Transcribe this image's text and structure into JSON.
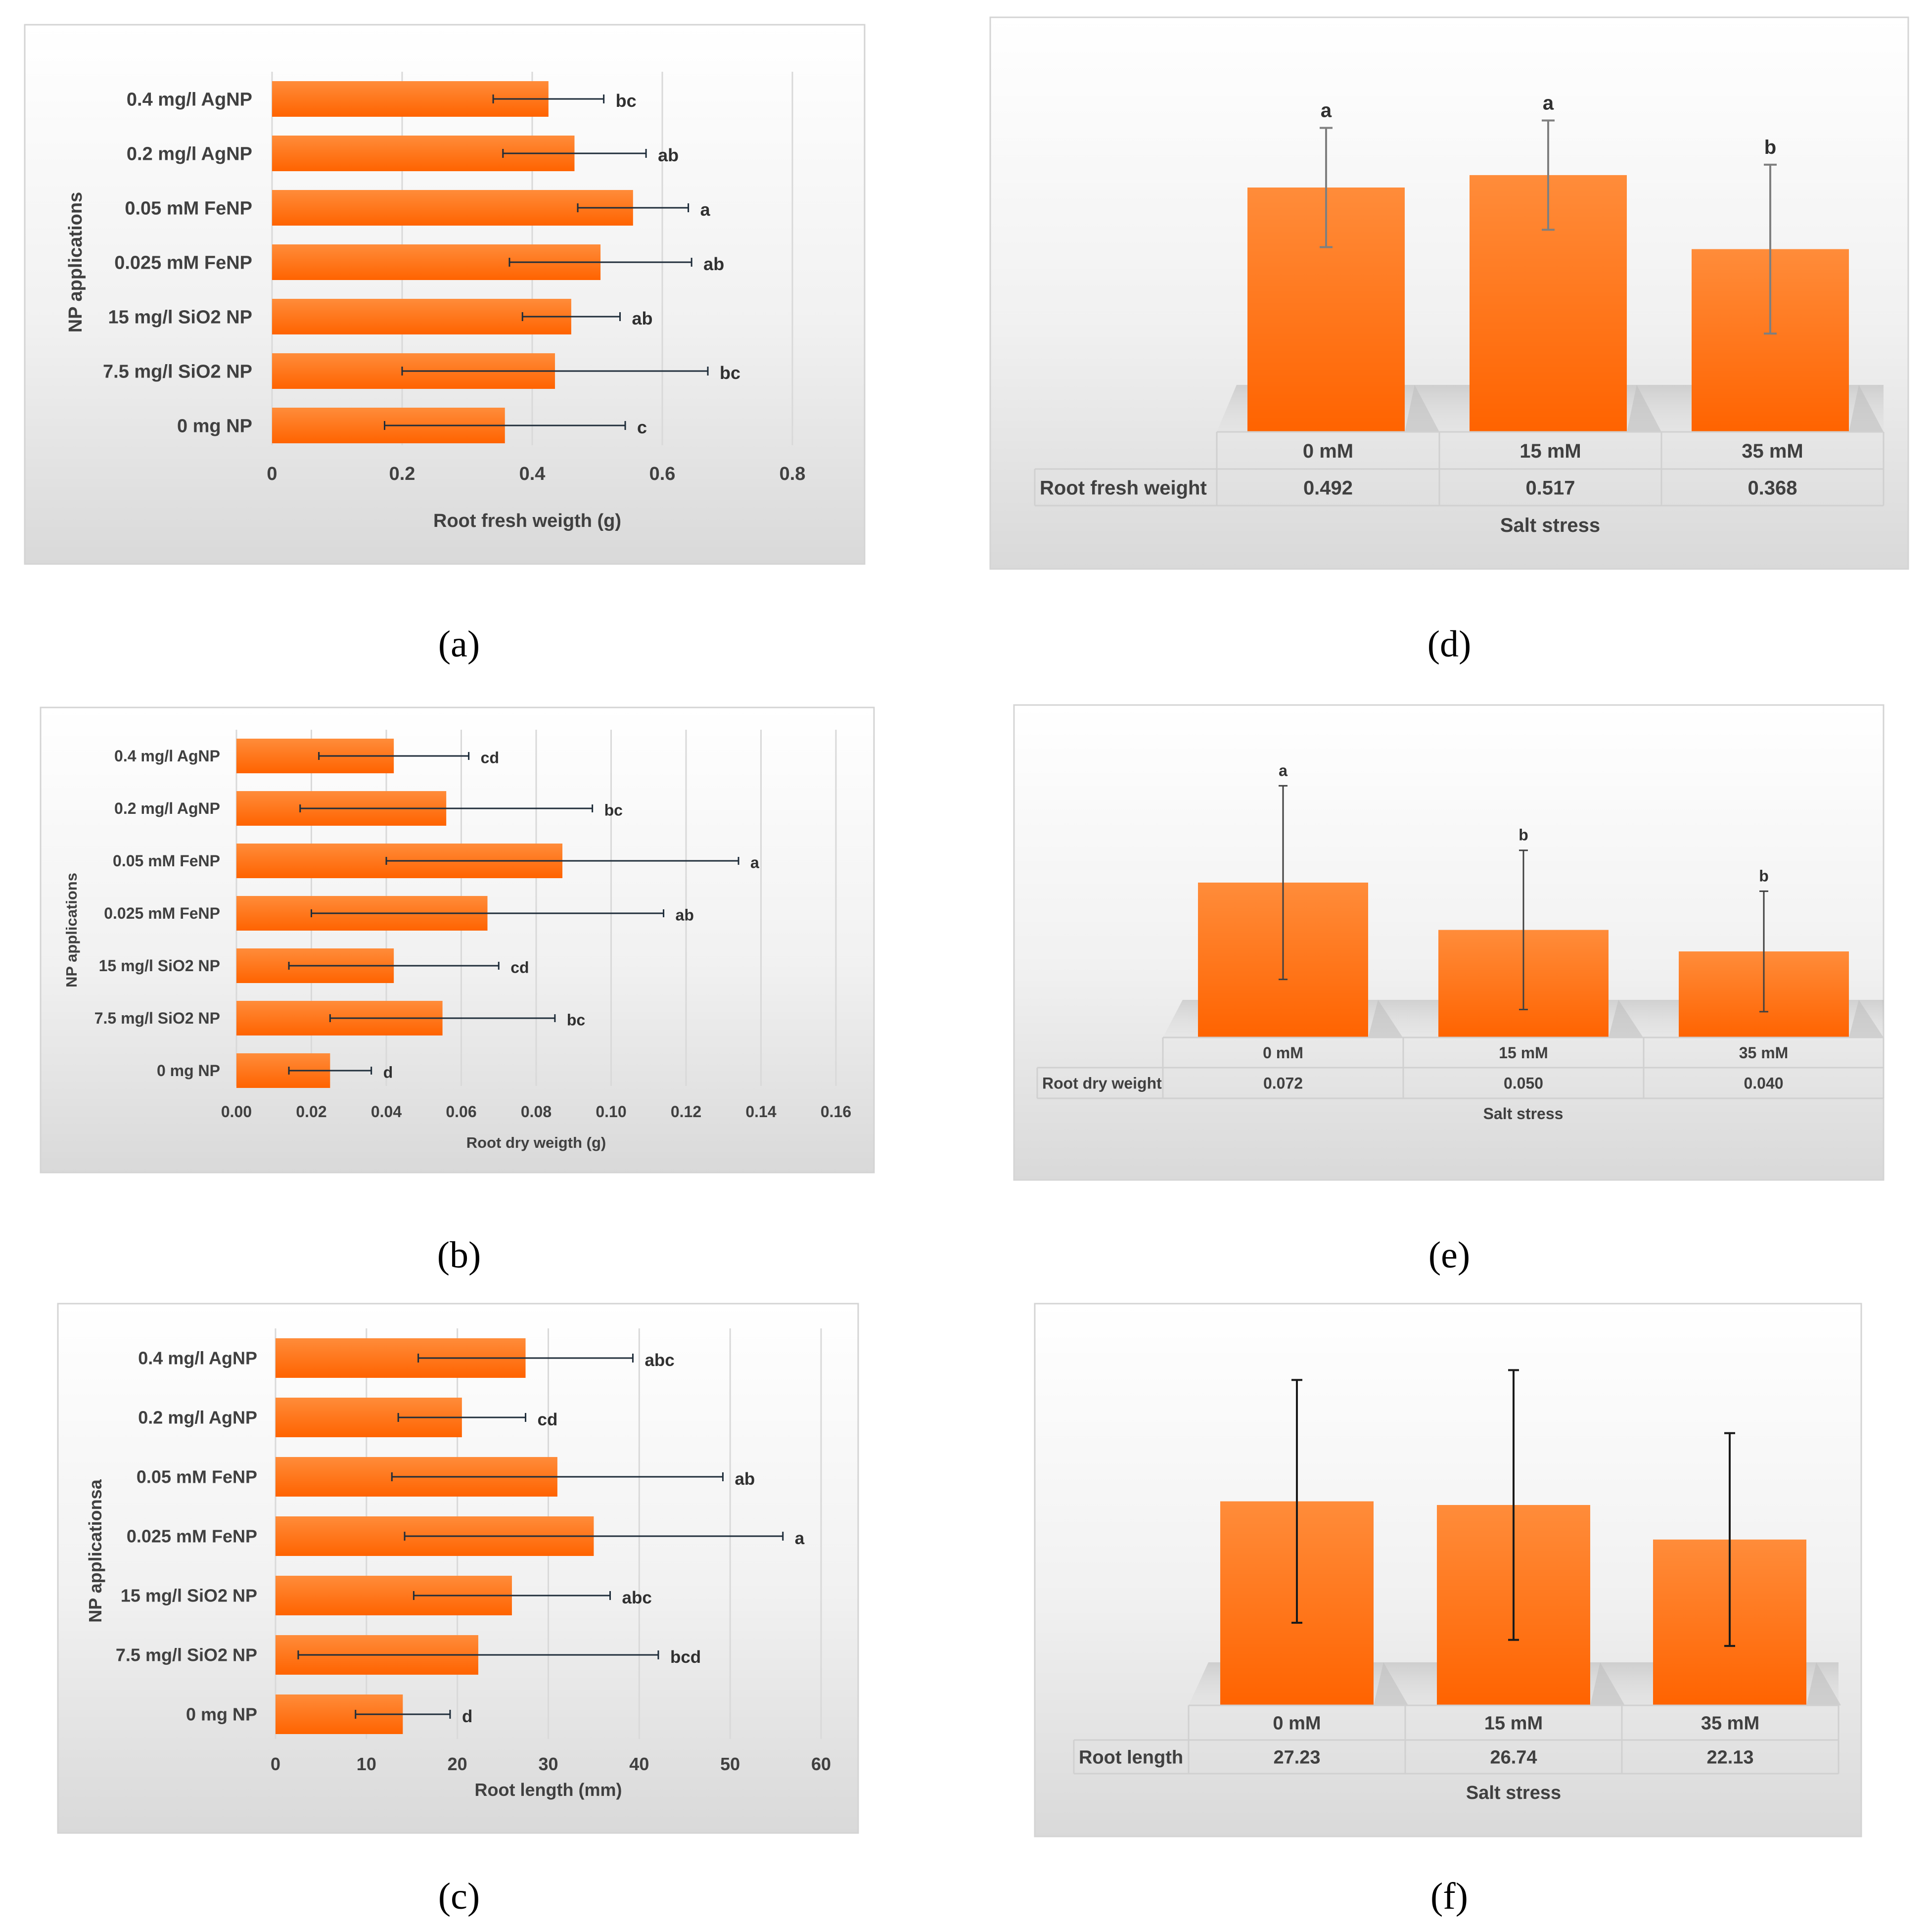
{
  "accent": "#FF6600",
  "bar_colors": {
    "top": "#FF8C3A",
    "bottom": "#FF6300"
  },
  "chart_data": [
    {
      "id": "a",
      "type": "bar",
      "orientation": "horizontal",
      "caption": "(a)",
      "categories": [
        "0.4 mg/l AgNP",
        "0.2 mg/l AgNP",
        "0.05 mM FeNP",
        "0.025 mM FeNP",
        "15 mg/l SiO2 NP",
        "7.5 mg/l SiO2 NP",
        "0 mg NP"
      ],
      "values": [
        0.425,
        0.465,
        0.555,
        0.505,
        0.46,
        0.435,
        0.358
      ],
      "errors": [
        0.085,
        0.11,
        0.085,
        0.14,
        0.075,
        0.235,
        0.185
      ],
      "letters": [
        "bc",
        "ab",
        "a",
        "ab",
        "ab",
        "bc",
        "c"
      ],
      "xlabel": "Root fresh weigth (g)",
      "ylabel": "NP applications",
      "xlim": [
        0,
        0.8
      ],
      "ticks": [
        0,
        0.2,
        0.4,
        0.6,
        0.8
      ],
      "tick_labels": [
        "0",
        "0.2",
        "0.4",
        "0.6",
        "0.8"
      ]
    },
    {
      "id": "b",
      "type": "bar",
      "orientation": "horizontal",
      "caption": "(b)",
      "categories": [
        "0.4 mg/l AgNP",
        "0.2 mg/l AgNP",
        "0.05 mM FeNP",
        "0.025 mM FeNP",
        "15 mg/l SiO2 NP",
        "7.5 mg/l SiO2 NP",
        "0 mg NP"
      ],
      "values": [
        0.042,
        0.056,
        0.087,
        0.067,
        0.042,
        0.055,
        0.025
      ],
      "errors": [
        0.02,
        0.039,
        0.047,
        0.047,
        0.028,
        0.03,
        0.011
      ],
      "letters": [
        "cd",
        "bc",
        "a",
        "ab",
        "cd",
        "bc",
        "d"
      ],
      "xlabel": "Root dry weigth (g)",
      "ylabel": "NP applications",
      "xlim": [
        0,
        0.16
      ],
      "ticks": [
        0,
        0.02,
        0.04,
        0.06,
        0.08,
        0.1,
        0.12,
        0.14,
        0.16
      ],
      "tick_labels": [
        "0.00",
        "0.02",
        "0.04",
        "0.06",
        "0.08",
        "0.10",
        "0.12",
        "0.14",
        "0.16"
      ]
    },
    {
      "id": "c",
      "type": "bar",
      "orientation": "horizontal",
      "caption": "(c)",
      "categories": [
        "0.4 mg/l AgNP",
        "0.2 mg/l AgNP",
        "0.05 mM FeNP",
        "0.025 mM FeNP",
        "15 mg/l SiO2 NP",
        "7.5 mg/l SiO2 NP",
        "0 mg NP"
      ],
      "values": [
        27.5,
        20.5,
        31,
        35,
        26,
        22.3,
        14
      ],
      "errors": [
        11.8,
        7,
        18.2,
        20.8,
        10.8,
        19.8,
        5.2
      ],
      "letters": [
        "abc",
        "cd",
        "ab",
        "a",
        "abc",
        "bcd",
        "d"
      ],
      "xlabel": "Root length (mm)",
      "ylabel": "NP applicationsa",
      "xlim": [
        0,
        60
      ],
      "ticks": [
        0,
        10,
        20,
        30,
        40,
        50,
        60
      ],
      "tick_labels": [
        "0",
        "10",
        "20",
        "30",
        "40",
        "50",
        "60"
      ]
    },
    {
      "id": "d",
      "type": "bar",
      "orientation": "vertical",
      "caption": "(d)",
      "categories": [
        "0 mM",
        "15 mM",
        "35 mM"
      ],
      "values": [
        0.492,
        0.517,
        0.368
      ],
      "errors": [
        0.12,
        0.11,
        0.17
      ],
      "letters": [
        "a",
        "a",
        "b"
      ],
      "ylim": [
        0,
        0.75
      ],
      "table_row_label": "Root fresh weight",
      "table_values": [
        "0.492",
        "0.517",
        "0.368"
      ],
      "xlabel": "Salt stress"
    },
    {
      "id": "e",
      "type": "bar",
      "orientation": "vertical",
      "caption": "(e)",
      "categories": [
        "0 mM",
        "15 mM",
        "35 mM"
      ],
      "values": [
        0.072,
        0.05,
        0.04
      ],
      "errors": [
        0.045,
        0.037,
        0.028
      ],
      "letters": [
        "a",
        "b",
        "b"
      ],
      "ylim": [
        0,
        0.135
      ],
      "table_row_label": "Root dry weight",
      "table_values": [
        "0.072",
        "0.050",
        "0.040"
      ],
      "xlabel": "Salt stress"
    },
    {
      "id": "f",
      "type": "bar",
      "orientation": "vertical",
      "caption": "(f)",
      "categories": [
        "0 mM",
        "15 mM",
        "35 mM"
      ],
      "values": [
        27.23,
        26.74,
        22.13
      ],
      "errors": [
        16.2,
        18,
        14.2
      ],
      "letters": [
        "",
        "",
        ""
      ],
      "ylim": [
        0,
        48
      ],
      "table_row_label": "Root length",
      "table_values": [
        "27.23",
        "26.74",
        "22.13"
      ],
      "xlabel": "Salt stress"
    }
  ]
}
